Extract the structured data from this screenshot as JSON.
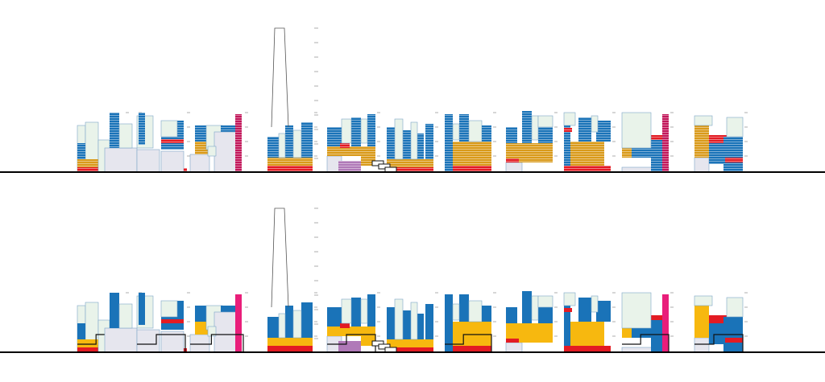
{
  "palette": {
    "blue": "#1a73b8",
    "navy": "#1f3f7a",
    "mint": "#e9f3ea",
    "red": "#e31b23",
    "gold": "#d99a1a",
    "yellow": "#f7b80f",
    "gray": "#e6e6ee",
    "purple": "#b079b8",
    "magenta": "#c2185b",
    "outline": "#7ea6c9",
    "baseline": "#000000",
    "frame": "#999999"
  },
  "panels": [
    {
      "id": "top",
      "style": "hatched"
    },
    {
      "id": "bottom",
      "style": "solid"
    }
  ],
  "building_groups": [
    "group-1",
    "group-2",
    "group-3",
    "group-4",
    "tower",
    "group-6",
    "group-7",
    "group-8",
    "group-9",
    "group-10",
    "group-11",
    "group-12"
  ]
}
